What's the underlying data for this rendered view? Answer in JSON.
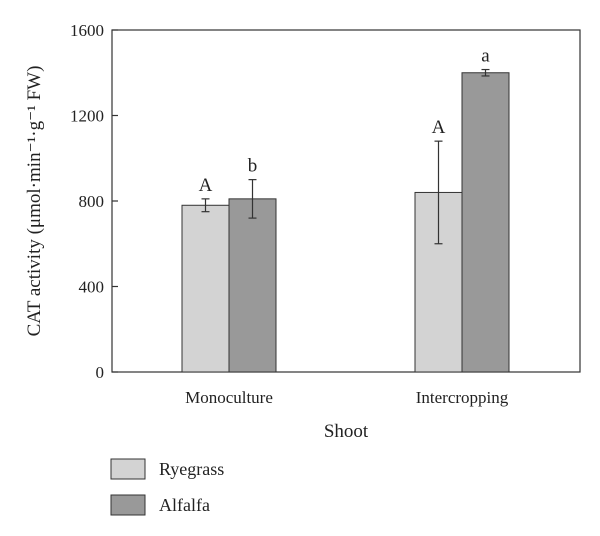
{
  "chart_data": {
    "type": "bar",
    "categories": [
      "Monoculture",
      "Intercropping"
    ],
    "series": [
      {
        "name": "Ryegrass",
        "color": "#d3d3d3",
        "values": [
          780,
          840
        ],
        "errors": [
          30,
          240
        ],
        "labels": [
          "A",
          "A"
        ]
      },
      {
        "name": "Alfalfa",
        "color": "#999999",
        "values": [
          810,
          1400
        ],
        "errors": [
          90,
          15
        ],
        "labels": [
          "b",
          "a"
        ]
      }
    ],
    "xlabel": "Shoot",
    "ylabel": "CAT activity (μmol·min⁻¹·g⁻¹ FW)",
    "ylim": [
      0,
      1600
    ],
    "yticks": [
      0,
      400,
      800,
      1200,
      1600
    ],
    "grid": false,
    "legend_position": "bottom-left"
  }
}
